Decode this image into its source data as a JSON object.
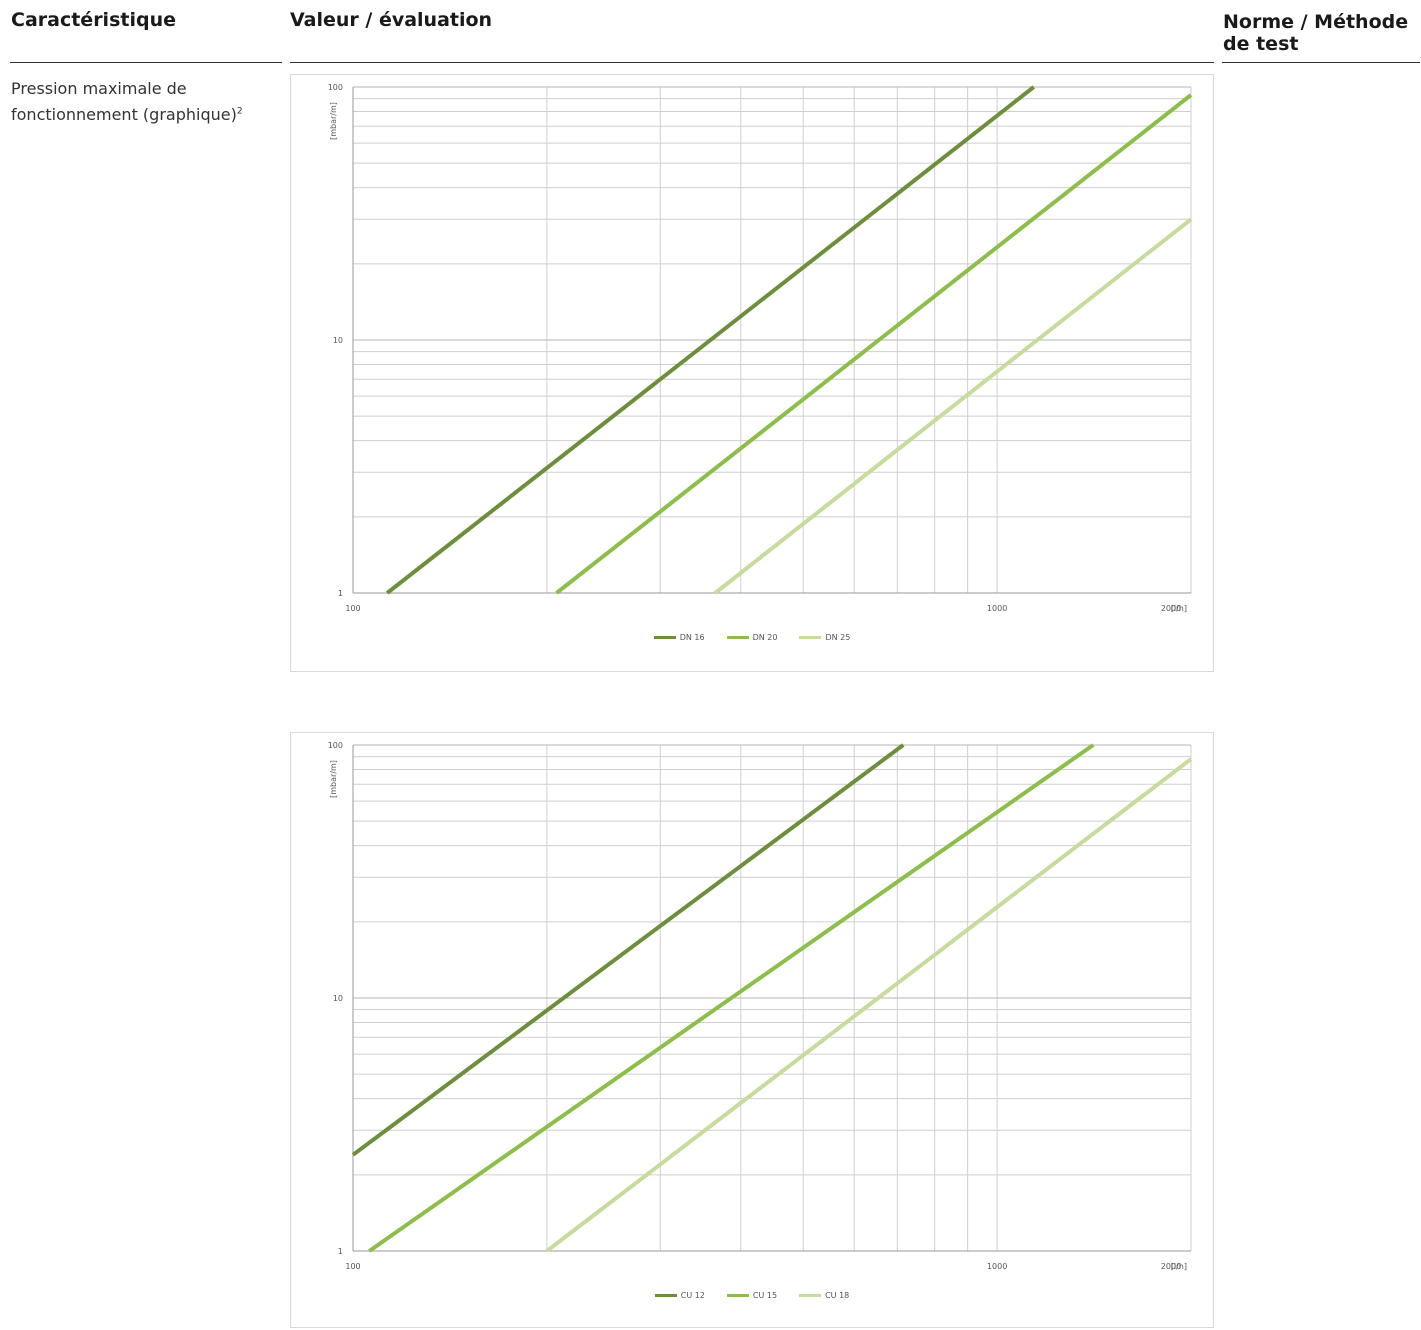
{
  "headers": {
    "col1": "Caractéristique",
    "col2": "Valeur / évaluation",
    "col3": "Norme / Méthode de test"
  },
  "row": {
    "label": "Pression maximale de fonctionnement (graphique)",
    "label_sup": "2"
  },
  "colors": {
    "series_dark": "#6d8f3c",
    "series_mid": "#8cbf4a",
    "series_light": "#c5dc9c",
    "grid": "#cfcfcf"
  },
  "chart_data": [
    {
      "type": "line",
      "x_scale": "log",
      "y_scale": "log",
      "xlim": [
        100,
        2000
      ],
      "ylim": [
        1,
        100
      ],
      "x_tick_labels": [
        {
          "value": 100,
          "label": "100"
        },
        {
          "value": 1000,
          "label": "1000"
        },
        {
          "value": 2000,
          "label": "2000"
        }
      ],
      "y_tick_labels": [
        {
          "value": 1,
          "label": "1"
        },
        {
          "value": 10,
          "label": "10"
        },
        {
          "value": 100,
          "label": "100"
        }
      ],
      "xlabel": "[l/h]",
      "ylabel": "[mbar/m]",
      "grid": true,
      "legend_position": "bottom-center",
      "series": [
        {
          "name": "DN 16",
          "color_key": "series_dark",
          "points": [
            [
              113,
              1
            ],
            [
              1140,
              100
            ]
          ]
        },
        {
          "name": "DN 20",
          "color_key": "series_mid",
          "points": [
            [
              207,
              1
            ],
            [
              2000,
              93
            ]
          ]
        },
        {
          "name": "DN 25",
          "color_key": "series_light",
          "points": [
            [
              365,
              1
            ],
            [
              2000,
              30
            ]
          ]
        }
      ]
    },
    {
      "type": "line",
      "x_scale": "log",
      "y_scale": "log",
      "xlim": [
        100,
        2000
      ],
      "ylim": [
        1,
        100
      ],
      "x_tick_labels": [
        {
          "value": 100,
          "label": "100"
        },
        {
          "value": 1000,
          "label": "1000"
        },
        {
          "value": 2000,
          "label": "2000"
        }
      ],
      "y_tick_labels": [
        {
          "value": 1,
          "label": "1"
        },
        {
          "value": 10,
          "label": "10"
        },
        {
          "value": 100,
          "label": "100"
        }
      ],
      "xlabel": "[l/h]",
      "ylabel": "[mbar/m]",
      "grid": true,
      "legend_position": "bottom-center",
      "series": [
        {
          "name": "CU 12",
          "color_key": "series_dark",
          "points": [
            [
              100,
              2.4
            ],
            [
              715,
              100
            ]
          ]
        },
        {
          "name": "CU 15",
          "color_key": "series_mid",
          "points": [
            [
              106,
              1
            ],
            [
              1410,
              100
            ]
          ]
        },
        {
          "name": "CU 18",
          "color_key": "series_light",
          "points": [
            [
              200,
              1
            ],
            [
              2000,
              88
            ]
          ]
        }
      ]
    }
  ]
}
